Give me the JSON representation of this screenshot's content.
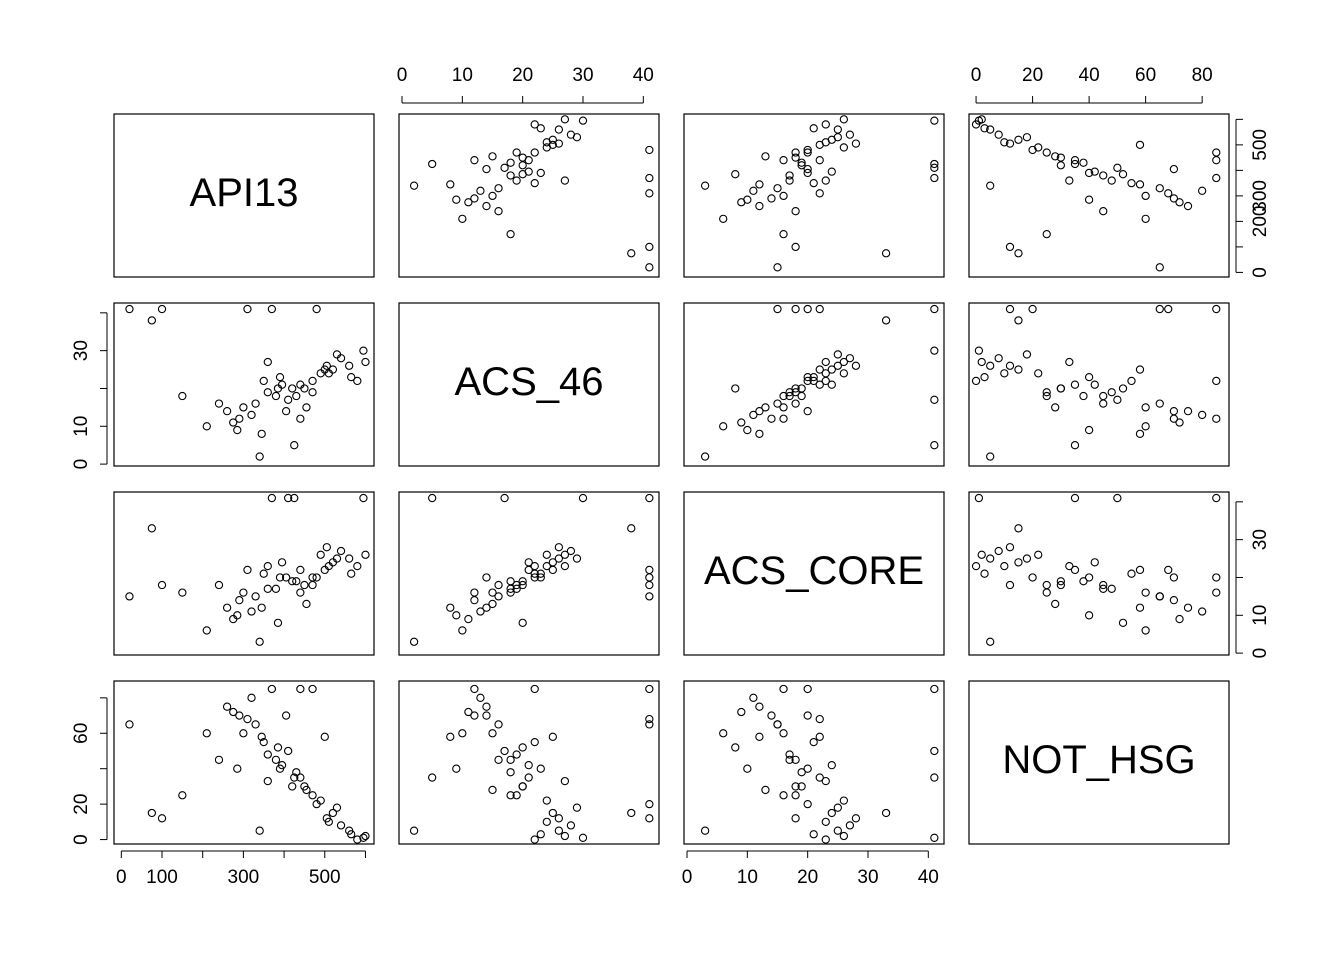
{
  "chart_data": {
    "type": "scatter_matrix",
    "variables": [
      {
        "name": "API13",
        "lim": [
          -18,
          621
        ],
        "axes": {
          "bottom": [
            0,
            100,
            {
              "value": 200,
              "label": null
            },
            300,
            {
              "value": 400,
              "label": null
            },
            500,
            {
              "value": 600,
              "label": null
            }
          ],
          "right": [
            0,
            {
              "value": 100,
              "label": null
            },
            200,
            300,
            {
              "value": 400,
              "label": null
            },
            500,
            {
              "value": 600,
              "label": null
            }
          ]
        },
        "values": [
          420,
          380,
          510,
          300,
          560,
          350,
          470,
          290,
          600,
          330,
          440,
          390,
          520,
          260,
          480,
          410,
          370,
          540,
          320,
          450,
          100,
          20,
          210,
          580,
          360,
          490,
          430,
          275,
          345,
          505,
          395,
          455,
          150,
          565,
          310,
          425,
          385,
          530,
          240,
          470,
          340,
          595,
          405,
          285,
          500,
          360,
          440,
          75
        ]
      },
      {
        "name": "ACS_46",
        "lim": [
          -0.5,
          42.6
        ],
        "axes": {
          "top": [
            0,
            10,
            20,
            30,
            40
          ],
          "left": [
            0,
            10,
            {
              "value": 20,
              "label": null
            },
            30,
            {
              "value": 40,
              "label": null
            }
          ]
        },
        "values": [
          20,
          18,
          24,
          15,
          26,
          22,
          19,
          12,
          27,
          16,
          21,
          23,
          25,
          14,
          41,
          17,
          41,
          28,
          13,
          20,
          41,
          41,
          10,
          22,
          19,
          24,
          18,
          11,
          8,
          26,
          21,
          15,
          18,
          23,
          41,
          5,
          20,
          29,
          16,
          22,
          2,
          30,
          14,
          9,
          25,
          27,
          12,
          38
        ]
      },
      {
        "name": "ACS_CORE",
        "lim": [
          -0.5,
          42.6
        ],
        "axes": {
          "bottom": [
            0,
            10,
            20,
            30,
            40
          ],
          "right": [
            0,
            10,
            {
              "value": 20,
              "label": null
            },
            30,
            {
              "value": 40,
              "label": null
            }
          ]
        },
        "values": [
          19,
          17,
          23,
          16,
          25,
          21,
          18,
          14,
          26,
          15,
          22,
          20,
          24,
          12,
          20,
          41,
          41,
          27,
          11,
          18,
          18,
          15,
          6,
          23,
          17,
          26,
          19,
          9,
          12,
          28,
          24,
          13,
          16,
          21,
          22,
          41,
          8,
          25,
          18,
          20,
          3,
          41,
          20,
          10,
          22,
          23,
          16,
          33
        ]
      },
      {
        "name": "NOT_HSG",
        "lim": [
          -2.5,
          89.5
        ],
        "axes": {
          "top": [
            0,
            20,
            40,
            60,
            80
          ],
          "left": [
            0,
            20,
            {
              "value": 40,
              "label": null
            },
            60,
            {
              "value": 80,
              "label": null
            }
          ]
        },
        "values": [
          30,
          45,
          10,
          60,
          5,
          55,
          25,
          70,
          2,
          65,
          35,
          40,
          15,
          75,
          20,
          50,
          85,
          8,
          80,
          30,
          12,
          65,
          60,
          0,
          48,
          22,
          38,
          72,
          58,
          12,
          42,
          28,
          25,
          3,
          68,
          35,
          52,
          18,
          45,
          85,
          5,
          1,
          70,
          40,
          58,
          33,
          85,
          15
        ]
      }
    ]
  }
}
